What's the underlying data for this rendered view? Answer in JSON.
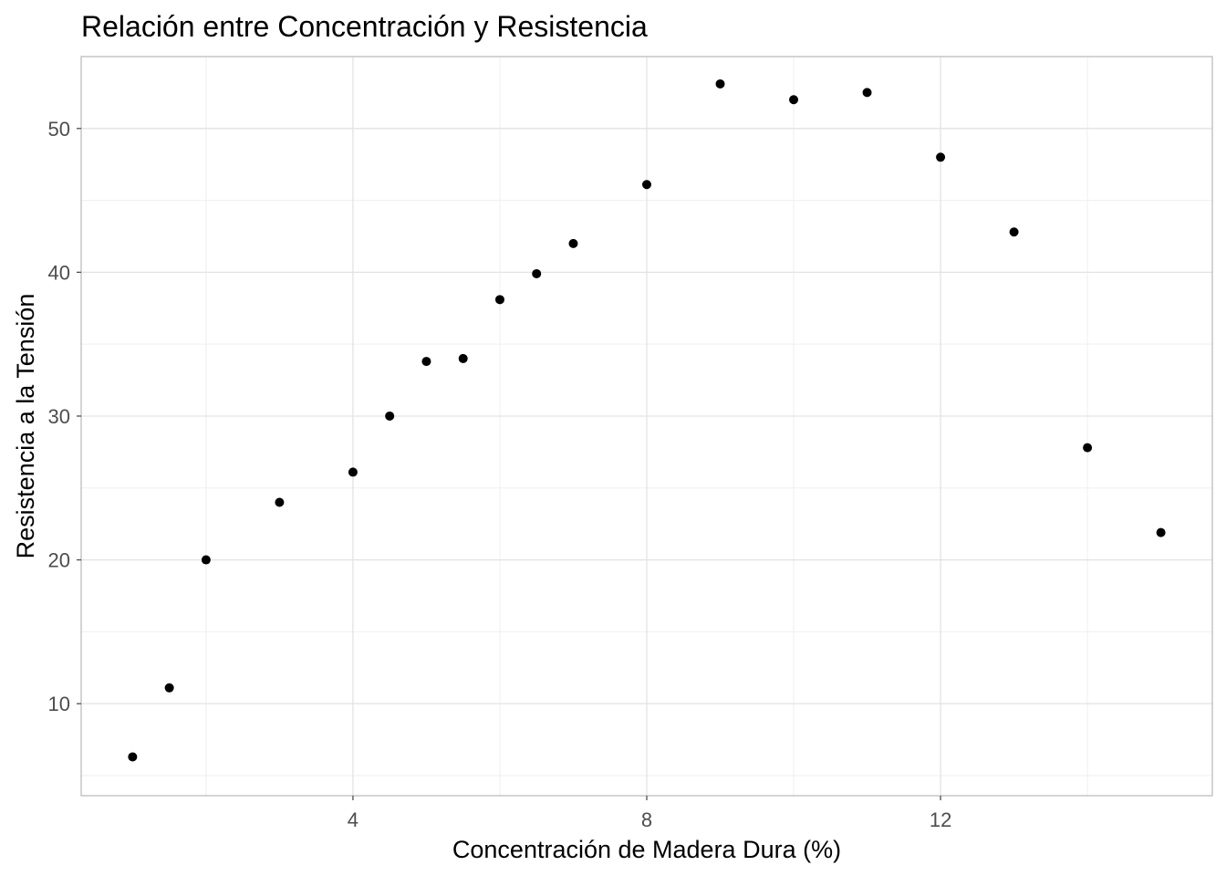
{
  "chart_data": {
    "type": "scatter",
    "title": "Relación entre Concentración y Resistencia",
    "xlabel": "Concentración de Madera Dura (%)",
    "ylabel": "Resistencia a la Tensión",
    "xlim": [
      0.3,
      15.7
    ],
    "ylim": [
      3.6,
      55.0
    ],
    "x_ticks": [
      4,
      8,
      12
    ],
    "y_ticks": [
      10,
      20,
      30,
      40,
      50
    ],
    "x_minor_ticks": [
      2,
      6,
      10,
      14
    ],
    "y_minor_ticks": [
      5,
      15,
      25,
      35,
      45
    ],
    "grid": true,
    "legend": "none",
    "point_color": "#000000",
    "points": [
      {
        "x": 1.0,
        "y": 6.3
      },
      {
        "x": 1.5,
        "y": 11.1
      },
      {
        "x": 2.0,
        "y": 20.0
      },
      {
        "x": 3.0,
        "y": 24.0
      },
      {
        "x": 4.0,
        "y": 26.1
      },
      {
        "x": 4.5,
        "y": 30.0
      },
      {
        "x": 5.0,
        "y": 33.8
      },
      {
        "x": 5.5,
        "y": 34.0
      },
      {
        "x": 6.0,
        "y": 38.1
      },
      {
        "x": 6.5,
        "y": 39.9
      },
      {
        "x": 7.0,
        "y": 42.0
      },
      {
        "x": 8.0,
        "y": 46.1
      },
      {
        "x": 9.0,
        "y": 53.1
      },
      {
        "x": 10.0,
        "y": 52.0
      },
      {
        "x": 11.0,
        "y": 52.5
      },
      {
        "x": 12.0,
        "y": 48.0
      },
      {
        "x": 13.0,
        "y": 42.8
      },
      {
        "x": 14.0,
        "y": 27.8
      },
      {
        "x": 15.0,
        "y": 21.9
      }
    ]
  }
}
